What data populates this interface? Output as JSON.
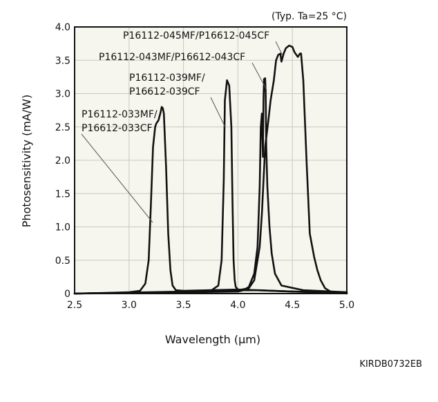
{
  "condition_note": "(Typ. Ta=25 °C)",
  "figure_code": "KIRDB0732EB",
  "chart_data": {
    "type": "line",
    "title": "",
    "xlabel": "Wavelength (μm)",
    "ylabel": "Photosensitivity (mA/W)",
    "xlim": [
      2.5,
      5.0
    ],
    "ylim": [
      0,
      4.0
    ],
    "xticks": [
      "2.5",
      "3.0",
      "3.5",
      "4.0",
      "4.5",
      "5.0"
    ],
    "yticks": [
      "0",
      "0.5",
      "1.0",
      "1.5",
      "2.0",
      "2.5",
      "3.0",
      "3.5",
      "4.0"
    ],
    "grid": true,
    "plot_background": "#f6f6ee",
    "line_color": "#111111",
    "series": [
      {
        "name": "P16112-033MF/P16612-033CF",
        "label_lines": [
          "P16112-033MF/",
          "P16612-033CF"
        ],
        "x": [
          2.5,
          2.8,
          3.0,
          3.1,
          3.15,
          3.18,
          3.2,
          3.22,
          3.24,
          3.25,
          3.27,
          3.29,
          3.3,
          3.31,
          3.32,
          3.34,
          3.36,
          3.38,
          3.4,
          3.43,
          3.5,
          4.0,
          4.5,
          5.0
        ],
        "y": [
          0,
          0.01,
          0.02,
          0.04,
          0.15,
          0.5,
          1.3,
          2.2,
          2.5,
          2.55,
          2.6,
          2.72,
          2.8,
          2.78,
          2.7,
          1.9,
          0.9,
          0.35,
          0.12,
          0.05,
          0.04,
          0.06,
          0.03,
          0.01
        ]
      },
      {
        "name": "P16112-039MF/P16612-039CF",
        "label_lines": [
          "P16112-039MF/",
          "P16612-039CF"
        ],
        "x": [
          2.5,
          3.0,
          3.5,
          3.75,
          3.82,
          3.85,
          3.87,
          3.88,
          3.9,
          3.92,
          3.94,
          3.95,
          3.96,
          3.97,
          3.98,
          4.0,
          4.05,
          4.2,
          4.5,
          5.0
        ],
        "y": [
          0,
          0.01,
          0.02,
          0.04,
          0.12,
          0.5,
          1.7,
          2.9,
          3.2,
          3.12,
          2.5,
          1.4,
          0.5,
          0.2,
          0.1,
          0.06,
          0.05,
          0.05,
          0.03,
          0.01
        ]
      },
      {
        "name": "P16112-043MF/P16612-043CF",
        "label_lines": [
          "P16112-043MF/P16612-043CF"
        ],
        "x": [
          2.5,
          3.5,
          4.0,
          4.05,
          4.1,
          4.15,
          4.18,
          4.2,
          4.21,
          4.22,
          4.23,
          4.235,
          4.24,
          4.25,
          4.255,
          4.26,
          4.27,
          4.29,
          4.31,
          4.34,
          4.4,
          4.6,
          5.0
        ],
        "y": [
          0,
          0.02,
          0.03,
          0.05,
          0.1,
          0.3,
          0.7,
          1.6,
          2.5,
          2.7,
          2.05,
          2.9,
          3.22,
          3.23,
          3.0,
          2.2,
          1.6,
          1.0,
          0.6,
          0.3,
          0.12,
          0.05,
          0.02
        ]
      },
      {
        "name": "P16112-045MF/P16612-045CF",
        "label_lines": [
          "P16112-045MF/P16612-045CF"
        ],
        "x": [
          2.5,
          3.5,
          4.0,
          4.1,
          4.15,
          4.2,
          4.22,
          4.25,
          4.28,
          4.3,
          4.33,
          4.35,
          4.37,
          4.39,
          4.4,
          4.42,
          4.44,
          4.47,
          4.5,
          4.52,
          4.55,
          4.57,
          4.58,
          4.6,
          4.63,
          4.66,
          4.7,
          4.73,
          4.76,
          4.8,
          4.85,
          4.95,
          5.0
        ],
        "y": [
          0,
          0.03,
          0.05,
          0.08,
          0.2,
          0.7,
          1.2,
          2.2,
          2.6,
          2.9,
          3.2,
          3.5,
          3.58,
          3.6,
          3.48,
          3.6,
          3.68,
          3.72,
          3.7,
          3.62,
          3.55,
          3.6,
          3.6,
          3.2,
          2.0,
          0.9,
          0.55,
          0.35,
          0.2,
          0.08,
          0.03,
          0.01,
          0.0
        ]
      }
    ]
  }
}
